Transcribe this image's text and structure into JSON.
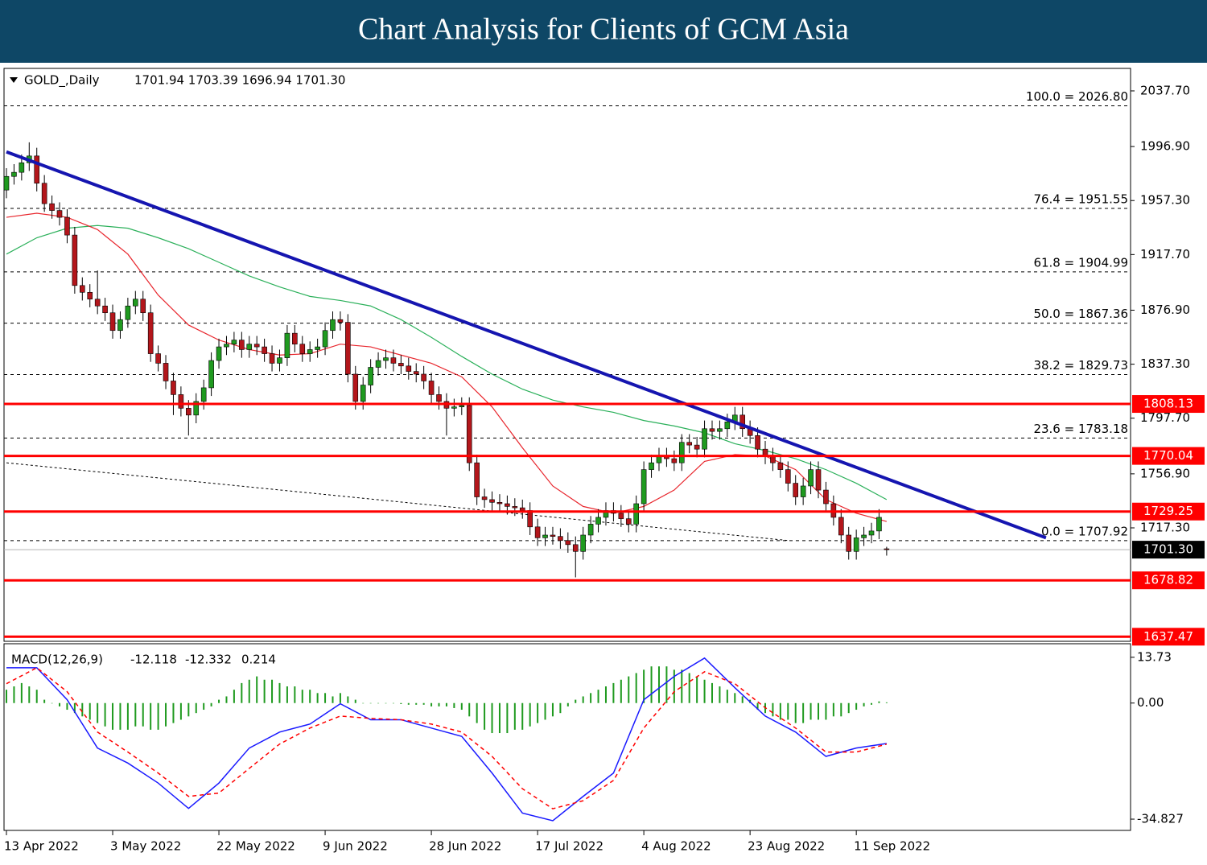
{
  "header": {
    "title": "Chart Analysis for Clients of GCM Asia"
  },
  "chart_data": {
    "type": "candlestick",
    "symbol": "GOLD_,Daily",
    "ohlc_text": "1701.94 1703.39 1696.94 1701.30",
    "bull_color": "#1f9a1f",
    "bear_color": "#b3161b",
    "candles": [
      [
        1965,
        1981,
        1959,
        1975
      ],
      [
        1975,
        1984,
        1969,
        1978
      ],
      [
        1978,
        1991,
        1972,
        1985
      ],
      [
        1985,
        2000,
        1979,
        1990
      ],
      [
        1990,
        1996,
        1964,
        1970
      ],
      [
        1970,
        1976,
        1949,
        1955
      ],
      [
        1955,
        1961,
        1944,
        1950
      ],
      [
        1950,
        1956,
        1939,
        1945
      ],
      [
        1945,
        1951,
        1926,
        1932
      ],
      [
        1932,
        1938,
        1889,
        1895
      ],
      [
        1895,
        1901,
        1884,
        1890
      ],
      [
        1890,
        1896,
        1879,
        1885
      ],
      [
        1885,
        1906,
        1874,
        1880
      ],
      [
        1880,
        1886,
        1869,
        1875
      ],
      [
        1875,
        1881,
        1856,
        1862
      ],
      [
        1862,
        1876,
        1856,
        1870
      ],
      [
        1870,
        1886,
        1864,
        1880
      ],
      [
        1880,
        1891,
        1874,
        1885
      ],
      [
        1885,
        1891,
        1869,
        1875
      ],
      [
        1875,
        1881,
        1839,
        1845
      ],
      [
        1845,
        1851,
        1832,
        1838
      ],
      [
        1838,
        1844,
        1819,
        1825
      ],
      [
        1825,
        1831,
        1800,
        1815
      ],
      [
        1815,
        1821,
        1799,
        1805
      ],
      [
        1805,
        1811,
        1785,
        1800
      ],
      [
        1800,
        1816,
        1794,
        1810
      ],
      [
        1810,
        1826,
        1804,
        1820
      ],
      [
        1820,
        1846,
        1814,
        1840
      ],
      [
        1840,
        1856,
        1834,
        1850
      ],
      [
        1850,
        1858,
        1844,
        1852
      ],
      [
        1852,
        1861,
        1846,
        1855
      ],
      [
        1855,
        1861,
        1842,
        1848
      ],
      [
        1848,
        1858,
        1842,
        1852
      ],
      [
        1852,
        1858,
        1844,
        1850
      ],
      [
        1850,
        1856,
        1839,
        1845
      ],
      [
        1845,
        1851,
        1832,
        1838
      ],
      [
        1838,
        1848,
        1832,
        1842
      ],
      [
        1842,
        1866,
        1836,
        1860
      ],
      [
        1860,
        1866,
        1846,
        1852
      ],
      [
        1852,
        1858,
        1839,
        1845
      ],
      [
        1845,
        1854,
        1839,
        1848
      ],
      [
        1848,
        1856,
        1842,
        1850
      ],
      [
        1850,
        1868,
        1844,
        1862
      ],
      [
        1862,
        1876,
        1856,
        1870
      ],
      [
        1870,
        1876,
        1862,
        1868
      ],
      [
        1868,
        1874,
        1824,
        1830
      ],
      [
        1830,
        1836,
        1804,
        1810
      ],
      [
        1810,
        1828,
        1804,
        1822
      ],
      [
        1822,
        1841,
        1816,
        1835
      ],
      [
        1835,
        1846,
        1829,
        1840
      ],
      [
        1840,
        1848,
        1834,
        1842
      ],
      [
        1842,
        1848,
        1832,
        1838
      ],
      [
        1838,
        1844,
        1830,
        1836
      ],
      [
        1836,
        1842,
        1826,
        1832
      ],
      [
        1832,
        1838,
        1824,
        1830
      ],
      [
        1830,
        1836,
        1819,
        1825
      ],
      [
        1825,
        1831,
        1809,
        1815
      ],
      [
        1815,
        1821,
        1804,
        1810
      ],
      [
        1810,
        1816,
        1785,
        1805
      ],
      [
        1805,
        1812,
        1799,
        1806
      ],
      [
        1806,
        1813,
        1800,
        1807
      ],
      [
        1807,
        1813,
        1759,
        1765
      ],
      [
        1765,
        1771,
        1734,
        1740
      ],
      [
        1740,
        1746,
        1732,
        1738
      ],
      [
        1738,
        1744,
        1730,
        1736
      ],
      [
        1736,
        1742,
        1729,
        1735
      ],
      [
        1735,
        1741,
        1727,
        1733
      ],
      [
        1733,
        1739,
        1726,
        1732
      ],
      [
        1732,
        1738,
        1724,
        1730
      ],
      [
        1730,
        1736,
        1712,
        1718
      ],
      [
        1718,
        1724,
        1704,
        1710
      ],
      [
        1710,
        1718,
        1704,
        1712
      ],
      [
        1712,
        1718,
        1705,
        1711
      ],
      [
        1711,
        1717,
        1702,
        1708
      ],
      [
        1708,
        1714,
        1699,
        1705
      ],
      [
        1705,
        1711,
        1681,
        1700
      ],
      [
        1700,
        1718,
        1694,
        1712
      ],
      [
        1712,
        1726,
        1706,
        1720
      ],
      [
        1720,
        1731,
        1714,
        1725
      ],
      [
        1725,
        1736,
        1719,
        1730
      ],
      [
        1730,
        1736,
        1722,
        1728
      ],
      [
        1728,
        1734,
        1718,
        1724
      ],
      [
        1724,
        1730,
        1714,
        1720
      ],
      [
        1720,
        1741,
        1714,
        1735
      ],
      [
        1735,
        1766,
        1729,
        1760
      ],
      [
        1760,
        1771,
        1754,
        1765
      ],
      [
        1765,
        1776,
        1759,
        1770
      ],
      [
        1770,
        1776,
        1762,
        1768
      ],
      [
        1768,
        1774,
        1759,
        1765
      ],
      [
        1765,
        1786,
        1759,
        1780
      ],
      [
        1780,
        1786,
        1772,
        1778
      ],
      [
        1778,
        1784,
        1769,
        1775
      ],
      [
        1775,
        1796,
        1769,
        1790
      ],
      [
        1790,
        1796,
        1782,
        1788
      ],
      [
        1788,
        1796,
        1782,
        1790
      ],
      [
        1790,
        1801,
        1784,
        1795
      ],
      [
        1795,
        1806,
        1789,
        1800
      ],
      [
        1800,
        1806,
        1784,
        1790
      ],
      [
        1790,
        1796,
        1779,
        1785
      ],
      [
        1785,
        1791,
        1769,
        1775
      ],
      [
        1775,
        1781,
        1764,
        1770
      ],
      [
        1770,
        1776,
        1759,
        1765
      ],
      [
        1765,
        1771,
        1754,
        1760
      ],
      [
        1760,
        1766,
        1744,
        1750
      ],
      [
        1750,
        1756,
        1734,
        1740
      ],
      [
        1740,
        1754,
        1734,
        1748
      ],
      [
        1748,
        1766,
        1742,
        1760
      ],
      [
        1760,
        1766,
        1739,
        1745
      ],
      [
        1745,
        1751,
        1729,
        1735
      ],
      [
        1735,
        1741,
        1719,
        1725
      ],
      [
        1725,
        1731,
        1706,
        1712
      ],
      [
        1712,
        1718,
        1694,
        1700
      ],
      [
        1700,
        1716,
        1694,
        1710
      ],
      [
        1710,
        1718,
        1704,
        1712
      ],
      [
        1712,
        1721,
        1706,
        1715
      ],
      [
        1715,
        1731,
        1709,
        1725
      ],
      [
        1701.94,
        1703.39,
        1696.94,
        1701.3
      ]
    ],
    "ylim": [
      1634.1,
      2054.2
    ],
    "yticks": [
      {
        "value": 2037.7,
        "label": "2037.70"
      },
      {
        "value": 1996.9,
        "label": "1996.90"
      },
      {
        "value": 1957.3,
        "label": "1957.30"
      },
      {
        "value": 1917.7,
        "label": "1917.70"
      },
      {
        "value": 1876.9,
        "label": "1876.90"
      },
      {
        "value": 1837.3,
        "label": "1837.30"
      },
      {
        "value": 1797.7,
        "label": "1797.70"
      },
      {
        "value": 1756.9,
        "label": "1756.90"
      },
      {
        "value": 1717.3,
        "label": "1717.30"
      }
    ],
    "fib_levels": [
      {
        "value": 2026.8,
        "label": "100.0 = 2026.80"
      },
      {
        "value": 1951.55,
        "label": "76.4 = 1951.55"
      },
      {
        "value": 1904.99,
        "label": "61.8 = 1904.99"
      },
      {
        "value": 1867.36,
        "label": "50.0 = 1867.36"
      },
      {
        "value": 1829.73,
        "label": "38.2 = 1829.73"
      },
      {
        "value": 1783.18,
        "label": "23.6 = 1783.18"
      },
      {
        "value": 1707.92,
        "label": "0.0 = 1707.92"
      }
    ],
    "levels": [
      1808.13,
      1770.04,
      1729.25,
      1678.82,
      1637.47
    ],
    "level_color": "#ff0000",
    "last_price": {
      "value": 1701.3,
      "label": "1701.30"
    },
    "trendline": {
      "x": [
        0,
        137
      ],
      "y": [
        1993,
        1710
      ],
      "color": "#1515b0"
    },
    "trendline2": {
      "x": [
        0,
        103
      ],
      "y": [
        1765,
        1708
      ]
    },
    "ma_fast": {
      "color": "#e8262d",
      "values": [
        1945,
        1948,
        1945,
        1936,
        1918,
        1888,
        1866,
        1855,
        1848,
        1844,
        1845,
        1852,
        1850,
        1844,
        1838,
        1828,
        1806,
        1776,
        1748,
        1733,
        1728,
        1733,
        1745,
        1766,
        1771,
        1770,
        1760,
        1738,
        1728,
        1722
      ]
    },
    "ma_slow": {
      "color": "#2bb05a",
      "values": [
        1918,
        1930,
        1937,
        1939,
        1937,
        1930,
        1922,
        1912,
        1902,
        1894,
        1887,
        1884,
        1880,
        1870,
        1857,
        1843,
        1830,
        1819,
        1811,
        1806,
        1802,
        1796,
        1792,
        1787,
        1779,
        1774,
        1768,
        1760,
        1750,
        1738
      ]
    },
    "date_ticks": [
      {
        "value": 0,
        "label": "13 Apr 2022"
      },
      {
        "value": 14,
        "label": "3 May 2022"
      },
      {
        "value": 28,
        "label": "22 May 2022"
      },
      {
        "value": 42,
        "label": "9 Jun 2022"
      },
      {
        "value": 56,
        "label": "28 Jun 2022"
      },
      {
        "value": 70,
        "label": "17 Jul 2022"
      },
      {
        "value": 84,
        "label": "4 Aug 2022"
      },
      {
        "value": 98,
        "label": "23 Aug 2022"
      },
      {
        "value": 112,
        "label": "11 Sep 2022"
      }
    ],
    "macd": {
      "title": "MACD(12,26,9)",
      "ylim": [
        -38.2,
        17.8
      ],
      "yticks": [
        13.73,
        {
          "value": 0,
          "label": "0.00"
        },
        -34.827
      ],
      "histogram_color": "#1f9a1f",
      "main_color": "#1a1aff",
      "signal_color": "#ff0000",
      "histogram": [
        4,
        5,
        6,
        5,
        4,
        1,
        0,
        -1,
        -2,
        -3,
        -4,
        -5,
        -6,
        -7,
        -8,
        -8,
        -8,
        -7,
        -7,
        -8,
        -8,
        -7,
        -6,
        -5,
        -4,
        -3,
        -2,
        -1,
        1,
        2,
        4,
        6,
        7,
        8,
        7,
        7,
        6,
        5,
        5,
        4,
        4,
        3,
        3,
        2,
        3,
        2,
        1,
        0,
        0,
        0,
        0,
        0,
        -0.3,
        -0.5,
        -0.5,
        -0.5,
        -1,
        -1,
        -1,
        -1.5,
        -2,
        -4,
        -6,
        -8,
        -9,
        -9,
        -9,
        -8,
        -8,
        -7,
        -6,
        -5,
        -4,
        -3,
        -1,
        1,
        2,
        3,
        4,
        5,
        6,
        7,
        8,
        9,
        10,
        11,
        11,
        11,
        10,
        10,
        9,
        8,
        7,
        6,
        5,
        4,
        3,
        2,
        1,
        -2,
        -3,
        -4,
        -5,
        -5,
        -6,
        -6,
        -5,
        -5,
        -5,
        -4,
        -4,
        -3,
        -2,
        -1,
        -0.5,
        0.5,
        0.214
      ],
      "main": [
        10.6,
        10.6,
        1,
        -13.5,
        -18,
        -24,
        -31.6,
        -24,
        -13.5,
        -8.7,
        -6.3,
        -0.2,
        -5,
        -5,
        -7.5,
        -10,
        -21,
        -33,
        -35.3,
        -28,
        -21,
        1,
        8,
        13.5,
        4.6,
        -3.9,
        -8.7,
        -16,
        -13.5,
        -12.118
      ],
      "signal": [
        5.8,
        10.6,
        3.4,
        -8.7,
        -14.7,
        -21,
        -28,
        -27,
        -19.6,
        -12.3,
        -7.5,
        -3.9,
        -4.6,
        -5,
        -6.3,
        -8.7,
        -16,
        -25.7,
        -31.7,
        -29.3,
        -23.2,
        -7.5,
        3.4,
        9.4,
        5.8,
        -1.4,
        -7.5,
        -14.7,
        -14.7,
        -12.332
      ]
    }
  }
}
